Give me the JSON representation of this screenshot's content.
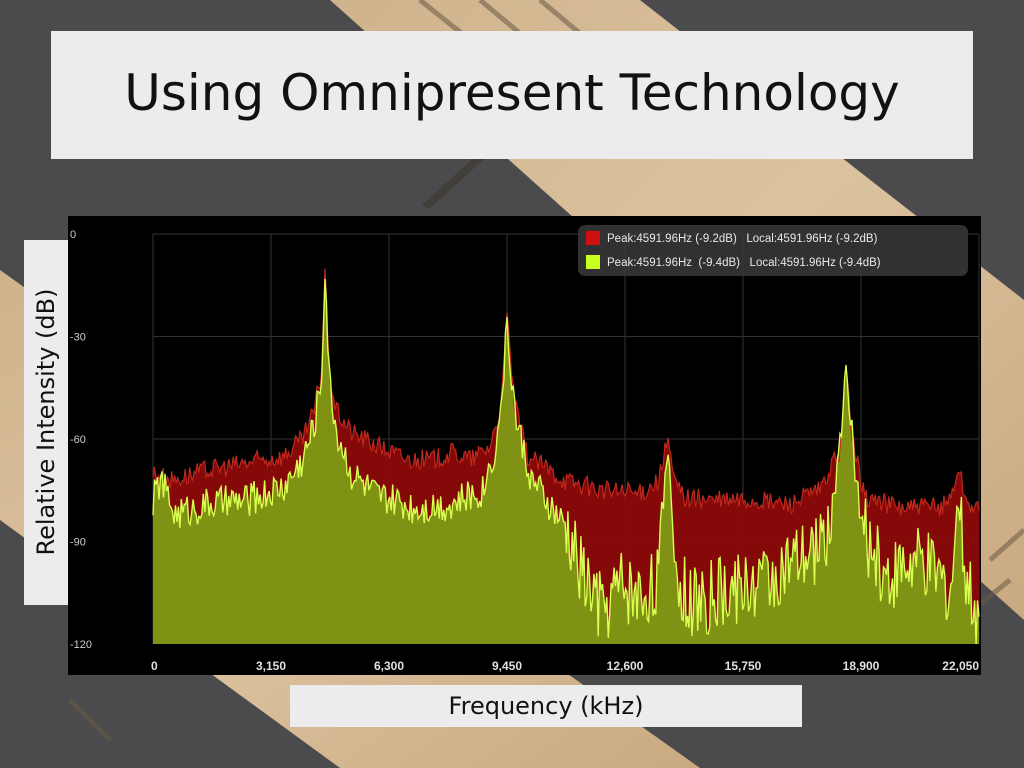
{
  "slide": {
    "title": "Using Omnipresent Technology",
    "y_axis_label": "Relative Intensity (dB)",
    "x_axis_label": "Frequency (kHz)"
  },
  "colors": {
    "series_red": "#8c0a0a",
    "series_red_line": "#c0281e",
    "series_green": "#7e9a14",
    "series_green_line": "#d8ff50",
    "chart_bg": "#000000",
    "grid": "#333333"
  },
  "chart_data": {
    "type": "area",
    "title": "",
    "xlabel": "Frequency (kHz)",
    "ylabel": "Relative Intensity (dB)",
    "xlim": [
      0,
      22050
    ],
    "ylim": [
      -120,
      0
    ],
    "x_ticks": [
      "0",
      "3,150",
      "6,300",
      "9,450",
      "12,600",
      "15,750",
      "18,900",
      "22,050"
    ],
    "y_ticks": [
      "0",
      "-30",
      "-60",
      "-90",
      "-120"
    ],
    "grid": true,
    "legend_position": "top-right",
    "legend": [
      "Peak:4591.96Hz (-9.2dB)   Local:4591.96Hz (-9.2dB)",
      "Peak:4591.96Hz  (-9.4dB)   Local:4591.96Hz (-9.4dB)"
    ],
    "series": [
      {
        "color": "#8c0a0a",
        "x": [
          0,
          500,
          1500,
          2500,
          3500,
          4000,
          4300,
          4500,
          4592,
          4700,
          4900,
          5300,
          6000,
          6800,
          7500,
          8000,
          8500,
          9000,
          9300,
          9450,
          9650,
          10000,
          11000,
          12000,
          13000,
          13500,
          13750,
          13900,
          14200,
          15000,
          16000,
          17000,
          17800,
          18350,
          18500,
          18700,
          19000,
          20000,
          21000,
          21300,
          21500,
          21700,
          22050
        ],
        "y": [
          -70,
          -72,
          -69,
          -67,
          -65,
          -60,
          -52,
          -40,
          -9.2,
          -40,
          -52,
          -58,
          -62,
          -66,
          -66,
          -64,
          -66,
          -62,
          -50,
          -24,
          -50,
          -65,
          -72,
          -75,
          -76,
          -72,
          -60,
          -72,
          -77,
          -78,
          -78,
          -79,
          -75,
          -63,
          -40,
          -62,
          -77,
          -80,
          -80,
          -77,
          -68,
          -78,
          -81
        ]
      },
      {
        "color": "#7e9a14",
        "x": [
          0,
          200,
          600,
          1500,
          2500,
          3500,
          4000,
          4300,
          4500,
          4592,
          4700,
          4900,
          5300,
          6000,
          7000,
          8000,
          8800,
          9200,
          9450,
          9700,
          10100,
          11000,
          11500,
          12000,
          12500,
          13000,
          13500,
          13750,
          14000,
          14500,
          15500,
          16500,
          17500,
          18100,
          18500,
          18900,
          19500,
          20500,
          21300,
          21500,
          21700,
          22050
        ],
        "y": [
          -78,
          -72,
          -82,
          -79,
          -78,
          -74,
          -66,
          -56,
          -42,
          -9.4,
          -42,
          -58,
          -70,
          -77,
          -80,
          -79,
          -75,
          -60,
          -28,
          -55,
          -72,
          -86,
          -100,
          -110,
          -102,
          -106,
          -100,
          -62,
          -103,
          -108,
          -104,
          -100,
          -95,
          -85,
          -42,
          -85,
          -100,
          -96,
          -104,
          -78,
          -102,
          -112
        ]
      }
    ]
  }
}
